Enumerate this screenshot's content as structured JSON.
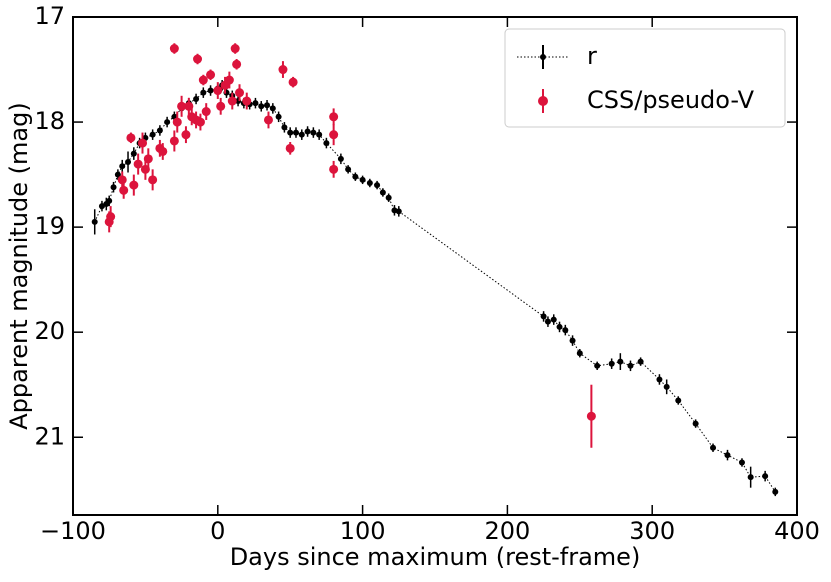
{
  "chart_data": {
    "type": "scatter",
    "xlabel": "Days since maximum (rest-frame)",
    "ylabel": "Apparent magnitude (mag)",
    "xlim": [
      -100,
      400
    ],
    "xticks": [
      {
        "value": -100,
        "label": "−100"
      },
      0,
      100,
      200,
      300,
      400
    ],
    "ylim": [
      21.74,
      17
    ],
    "yticks": [
      17,
      18,
      19,
      20,
      21
    ],
    "legend": "upper right",
    "series": [
      {
        "name": "r",
        "color": "#000000",
        "line_style": "dotted",
        "x": [
          -85,
          -80,
          -77,
          -75,
          -72,
          -69,
          -66,
          -62,
          -58,
          -54,
          -50,
          -45,
          -40,
          -35,
          -30,
          -25,
          -20,
          -15,
          -10,
          -5,
          0,
          3,
          6,
          10,
          14,
          18,
          22,
          26,
          30,
          34,
          38,
          42,
          46,
          50,
          54,
          58,
          62,
          66,
          70,
          75,
          85,
          90,
          95,
          100,
          105,
          110,
          114,
          118,
          122,
          125,
          225,
          228,
          232,
          236,
          240,
          245,
          250,
          262,
          272,
          278,
          285,
          292,
          305,
          310,
          318,
          330,
          342,
          352,
          362,
          368,
          378,
          385
        ],
        "values": [
          18.95,
          18.8,
          18.78,
          18.75,
          18.62,
          18.5,
          18.42,
          18.38,
          18.3,
          18.2,
          18.15,
          18.12,
          18.08,
          18.0,
          17.95,
          17.87,
          17.82,
          17.78,
          17.72,
          17.7,
          17.68,
          17.65,
          17.72,
          17.75,
          17.8,
          17.82,
          17.83,
          17.82,
          17.85,
          17.84,
          17.87,
          17.95,
          18.05,
          18.1,
          18.1,
          18.12,
          18.09,
          18.1,
          18.12,
          18.2,
          18.35,
          18.45,
          18.52,
          18.55,
          18.58,
          18.6,
          18.67,
          18.72,
          18.84,
          18.85,
          19.85,
          19.9,
          19.88,
          19.95,
          19.98,
          20.08,
          20.2,
          20.32,
          20.3,
          20.28,
          20.32,
          20.28,
          20.45,
          20.52,
          20.65,
          20.87,
          21.1,
          21.17,
          21.24,
          21.38,
          21.37,
          21.52
        ],
        "errors": [
          0.12,
          0.05,
          0.06,
          0.05,
          0.05,
          0.05,
          0.06,
          0.1,
          0.06,
          0.05,
          0.05,
          0.05,
          0.05,
          0.05,
          0.05,
          0.05,
          0.05,
          0.05,
          0.05,
          0.05,
          0.05,
          0.05,
          0.05,
          0.05,
          0.05,
          0.05,
          0.05,
          0.05,
          0.05,
          0.05,
          0.05,
          0.05,
          0.05,
          0.05,
          0.05,
          0.05,
          0.05,
          0.05,
          0.05,
          0.05,
          0.05,
          0.04,
          0.04,
          0.04,
          0.04,
          0.04,
          0.04,
          0.04,
          0.05,
          0.05,
          0.05,
          0.05,
          0.05,
          0.05,
          0.05,
          0.05,
          0.04,
          0.04,
          0.05,
          0.08,
          0.05,
          0.04,
          0.05,
          0.07,
          0.04,
          0.04,
          0.04,
          0.05,
          0.04,
          0.1,
          0.05,
          0.04
        ]
      },
      {
        "name": "CSS/pseudo-V",
        "color": "#dc143c",
        "x": [
          -75,
          -74,
          -66,
          -65,
          -60,
          -58,
          -55,
          -52,
          -50,
          -48,
          -45,
          -40,
          -38,
          -30,
          -30,
          -28,
          -25,
          -22,
          -20,
          -18,
          -15,
          -14,
          -12,
          -10,
          -8,
          -5,
          0,
          2,
          5,
          8,
          10,
          12,
          13,
          15,
          20,
          35,
          45,
          50,
          52,
          80,
          80,
          80,
          258
        ],
        "values": [
          18.95,
          18.9,
          18.55,
          18.65,
          18.15,
          18.6,
          18.4,
          18.2,
          18.45,
          18.35,
          18.55,
          18.25,
          18.28,
          17.3,
          18.18,
          18.0,
          17.85,
          18.12,
          17.85,
          17.95,
          17.98,
          17.4,
          18.0,
          17.6,
          17.9,
          17.55,
          17.7,
          17.85,
          17.65,
          17.6,
          17.8,
          17.3,
          17.45,
          17.72,
          17.8,
          17.98,
          17.5,
          18.25,
          17.62,
          18.12,
          17.95,
          18.45,
          20.8
        ],
        "errors": [
          0.1,
          0.1,
          0.08,
          0.08,
          0.05,
          0.1,
          0.1,
          0.1,
          0.1,
          0.1,
          0.1,
          0.08,
          0.08,
          0.05,
          0.1,
          0.1,
          0.1,
          0.08,
          0.08,
          0.08,
          0.08,
          0.05,
          0.08,
          0.05,
          0.08,
          0.05,
          0.08,
          0.08,
          0.08,
          0.08,
          0.08,
          0.05,
          0.05,
          0.08,
          0.08,
          0.08,
          0.08,
          0.06,
          0.05,
          0.1,
          0.08,
          0.08,
          0.3
        ]
      }
    ]
  }
}
